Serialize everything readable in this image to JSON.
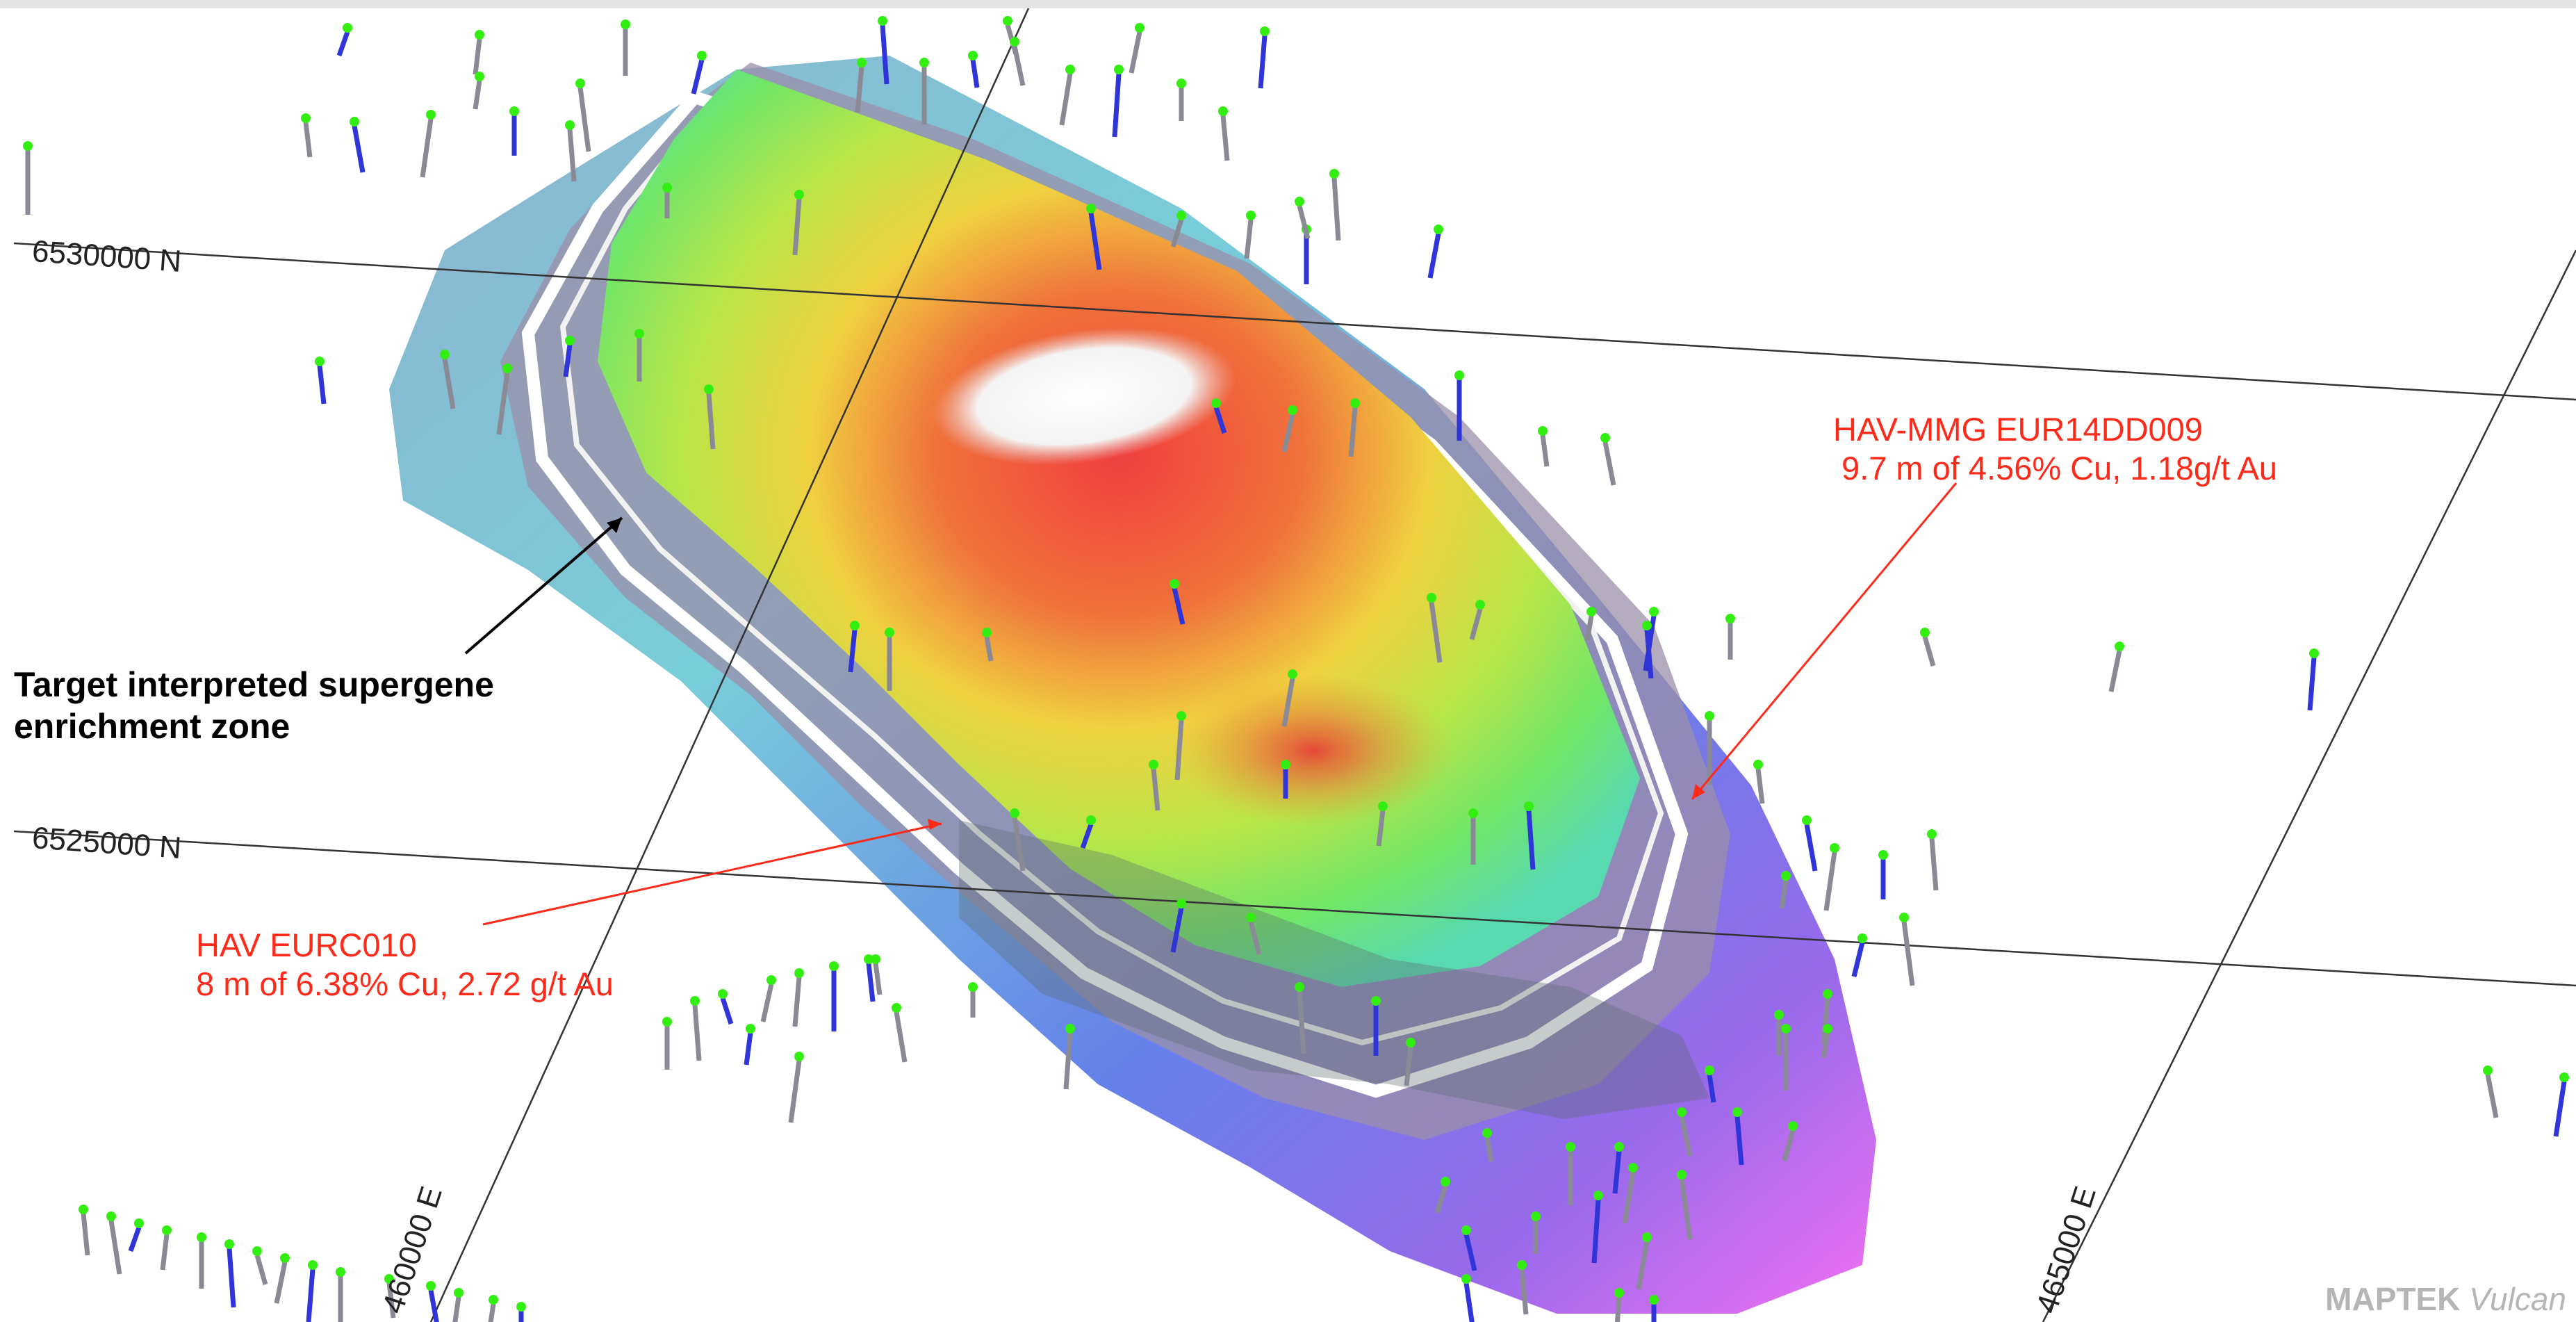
{
  "grid_labels": {
    "north_upper": "6530000 N",
    "north_lower": "6525000 N",
    "east_left": "460000 E",
    "east_right": "465000 E"
  },
  "annotations": {
    "target_zone": {
      "line1": "Target interpreted supergene",
      "line2": "enrichment zone"
    },
    "hole_eur14dd009": {
      "line1": "HAV-MMG EUR14DD009",
      "line2": "9.7 m of 4.56% Cu, 1.18g/t Au"
    },
    "hole_eurc010": {
      "line1": "HAV EURC010",
      "line2": "8 m of 6.38% Cu, 2.72 g/t Au"
    }
  },
  "watermark": {
    "brand": "MAPTEK",
    "product": "Vulcan"
  },
  "colors": {
    "annotation_red": "#ff2a1a",
    "annotation_black": "#000000",
    "collar_green": "#33ee11",
    "grid_line": "#333333"
  }
}
